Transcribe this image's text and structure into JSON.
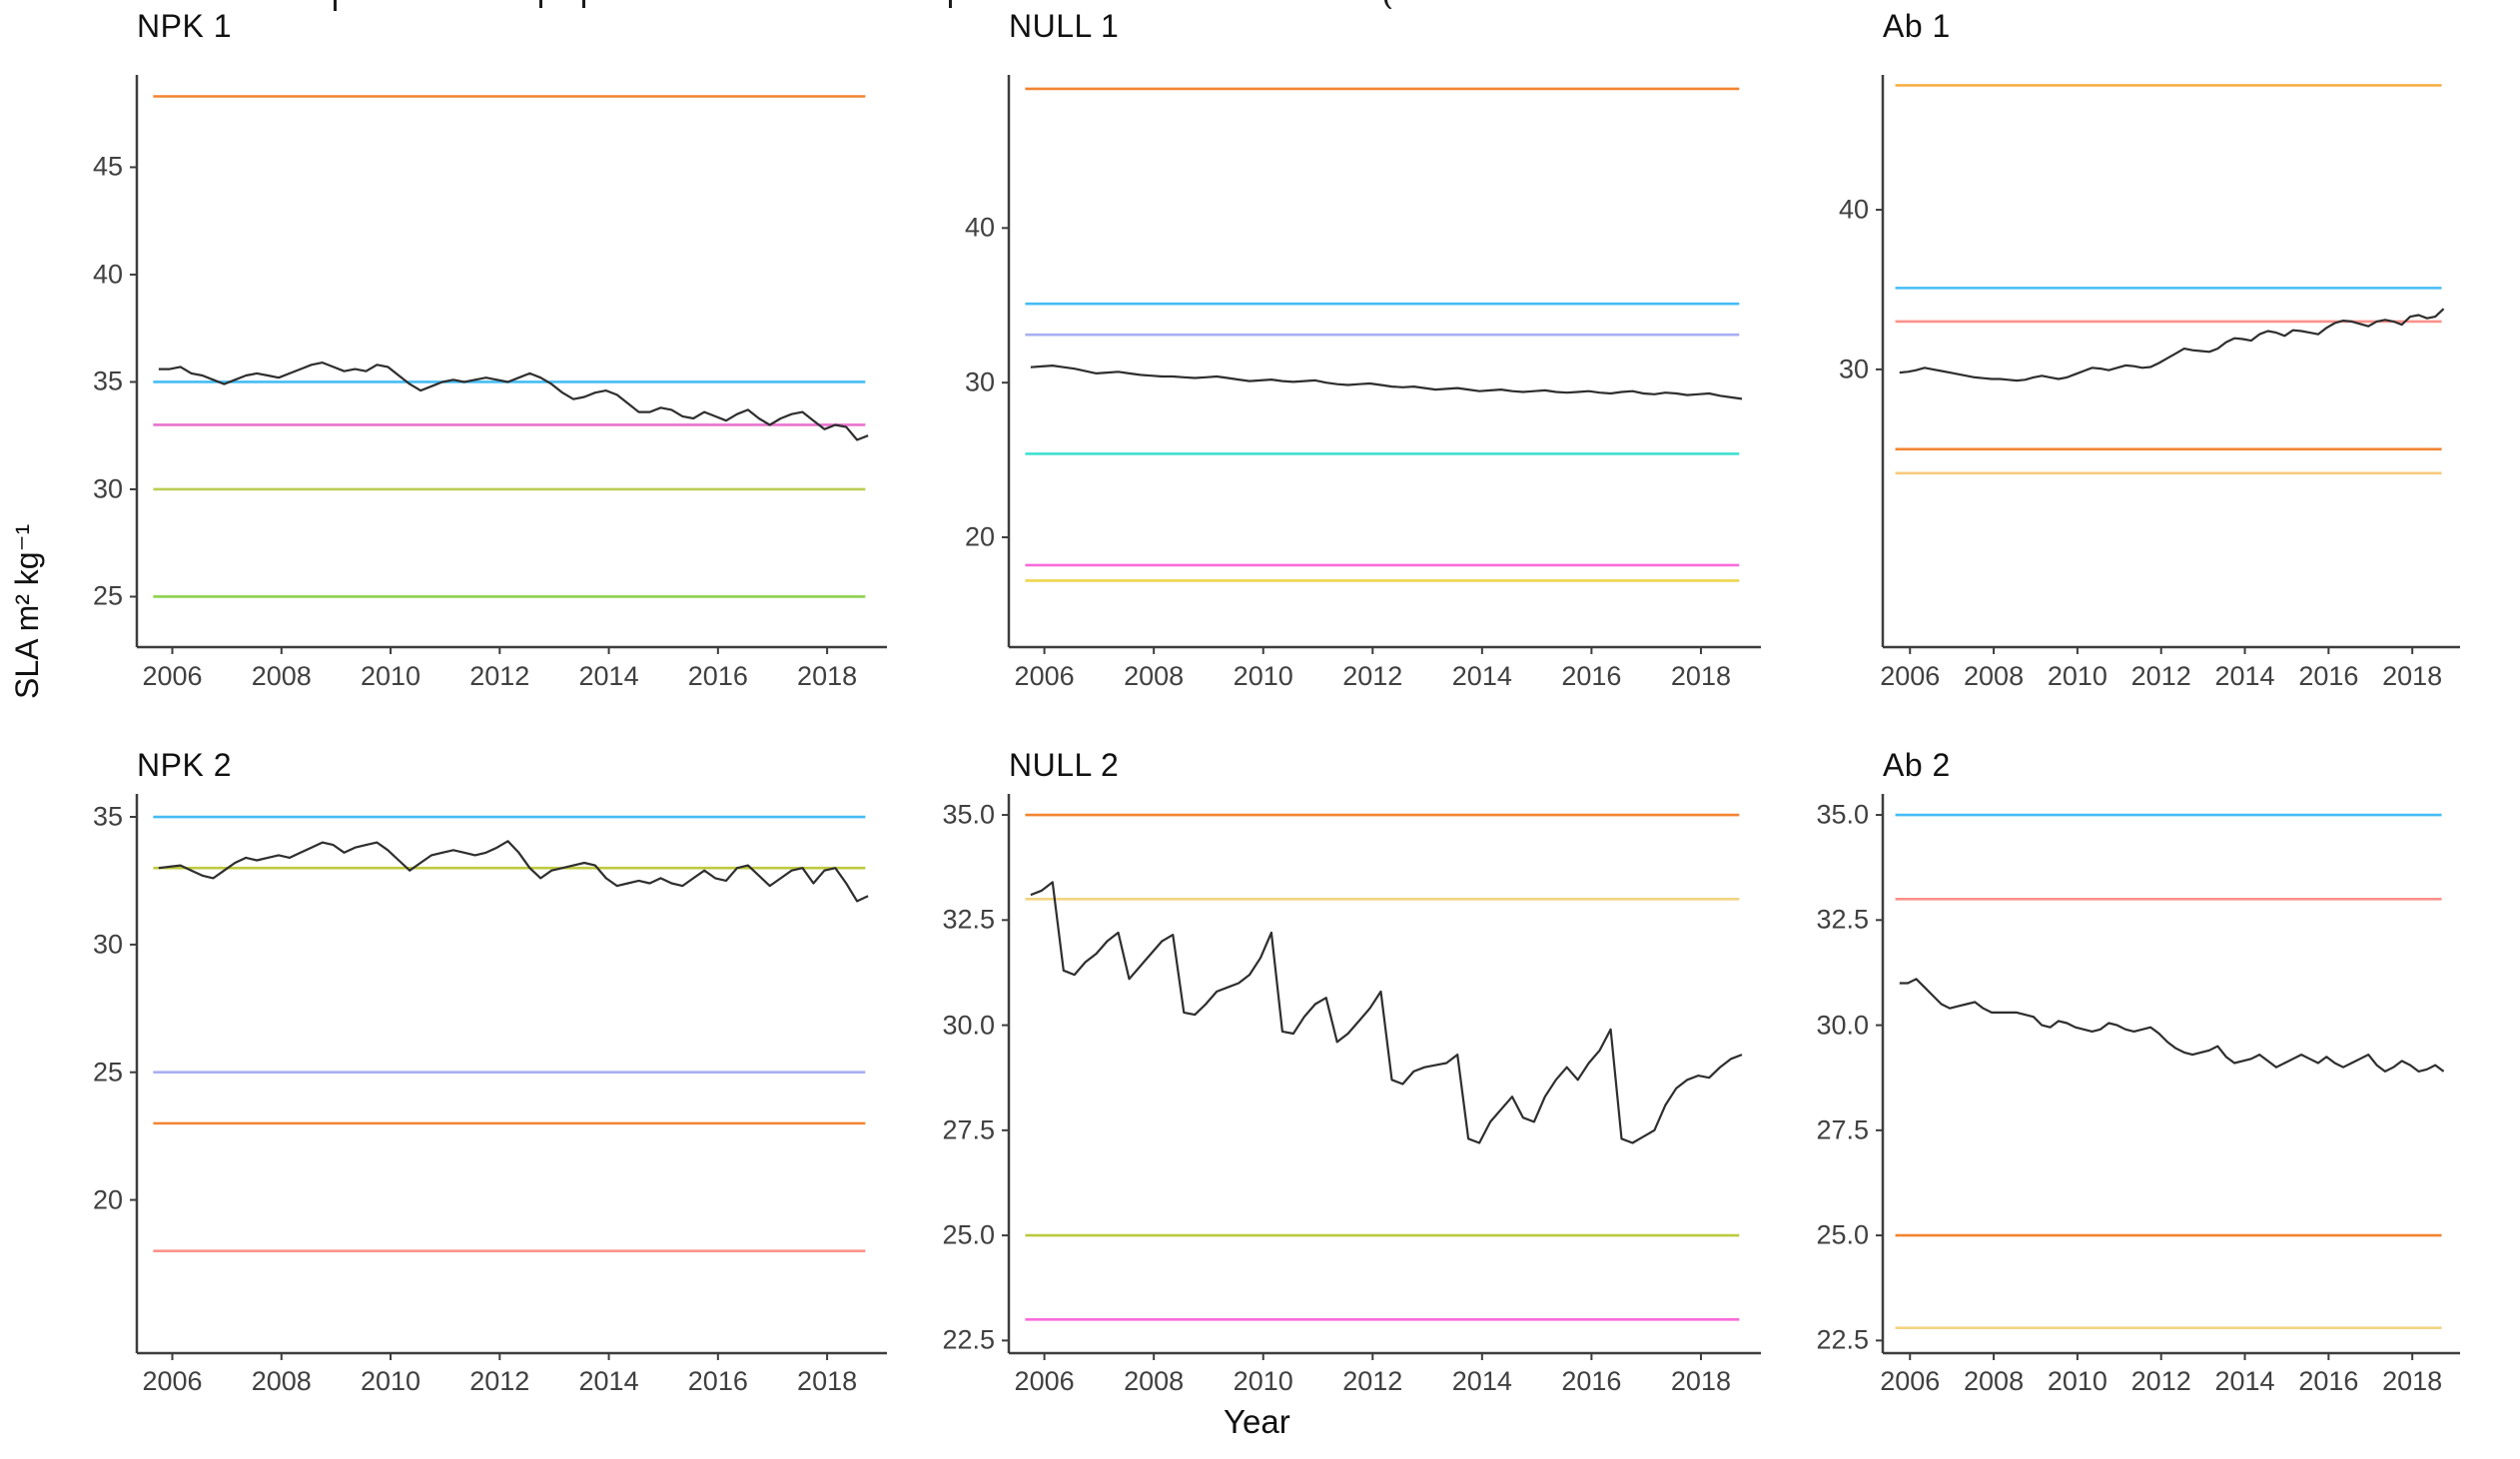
{
  "figure": {
    "y_axis_label": "SLA m² kg⁻¹",
    "x_axis_label": "Year",
    "background": "#ffffff",
    "axis_color": "#3d3d3d",
    "tick_label_color": "#404040",
    "series_color": "#2e2e2e",
    "cropped_top_title": true
  },
  "palette": {
    "orange": "#F28431",
    "skyblue": "#45BCF5",
    "magenta": "#E873CE",
    "pink": "#FA6BDC",
    "yellowgreen": "#BCCE53",
    "green": "#8ED04C",
    "periwinkle": "#A8AEF2",
    "cyan": "#3FE0D0",
    "yellow": "#EDD64F",
    "wheat": "#F2D381",
    "amber": "#F6B044",
    "lightamber": "#F9C97C",
    "olive": "#BEC93E",
    "salmon": "#FB918B"
  },
  "chart_data": [
    {
      "type": "line",
      "title": "NPK 1",
      "row": 1,
      "col": 1,
      "ylim": [
        22.65,
        49.3
      ],
      "yticks": [
        25,
        30,
        35,
        40,
        45
      ],
      "ytick_labels": [
        "25",
        "30",
        "35",
        "40",
        "45"
      ],
      "xlim": [
        2005.35,
        2018.95
      ],
      "xticks": [
        2006,
        2008,
        2010,
        2012,
        2014,
        2016,
        2018
      ],
      "ref_lines": [
        {
          "value": 48.3,
          "color": "orange"
        },
        {
          "value": 35.0,
          "color": "skyblue"
        },
        {
          "value": 33.0,
          "color": "magenta"
        },
        {
          "value": 30.0,
          "color": "yellowgreen"
        },
        {
          "value": 25.0,
          "color": "green"
        }
      ],
      "series": {
        "x_start": 2005.75,
        "x_step": 0.2,
        "values": [
          35.6,
          35.6,
          35.7,
          35.4,
          35.3,
          35.1,
          34.9,
          35.1,
          35.3,
          35.4,
          35.3,
          35.2,
          35.4,
          35.6,
          35.8,
          35.9,
          35.7,
          35.5,
          35.6,
          35.5,
          35.8,
          35.7,
          35.3,
          34.9,
          34.6,
          34.8,
          35.0,
          35.1,
          35.0,
          35.1,
          35.2,
          35.1,
          35.0,
          35.2,
          35.4,
          35.2,
          34.9,
          34.5,
          34.2,
          34.3,
          34.5,
          34.6,
          34.4,
          34.0,
          33.6,
          33.6,
          33.8,
          33.7,
          33.4,
          33.3,
          33.6,
          33.4,
          33.2,
          33.5,
          33.7,
          33.3,
          33.0,
          33.3,
          33.5,
          33.6,
          33.2,
          32.8,
          33.0,
          32.9,
          32.3,
          32.5
        ]
      }
    },
    {
      "type": "line",
      "title": "NULL 1",
      "row": 1,
      "col": 2,
      "ylim": [
        12.9,
        49.9
      ],
      "yticks": [
        20,
        30,
        40
      ],
      "ytick_labels": [
        "20",
        "30",
        "40"
      ],
      "xlim": [
        2005.35,
        2018.95
      ],
      "xticks": [
        2006,
        2008,
        2010,
        2012,
        2014,
        2016,
        2018
      ],
      "ref_lines": [
        {
          "value": 49.0,
          "color": "orange"
        },
        {
          "value": 35.1,
          "color": "skyblue"
        },
        {
          "value": 33.1,
          "color": "periwinkle"
        },
        {
          "value": 25.4,
          "color": "cyan"
        },
        {
          "value": 18.2,
          "color": "pink"
        },
        {
          "value": 17.2,
          "color": "yellow"
        }
      ],
      "series": {
        "x_start": 2005.75,
        "x_step": 0.2,
        "values": [
          31.0,
          31.05,
          31.1,
          31.0,
          30.9,
          30.75,
          30.6,
          30.65,
          30.7,
          30.6,
          30.5,
          30.45,
          30.4,
          30.4,
          30.35,
          30.3,
          30.35,
          30.4,
          30.3,
          30.2,
          30.1,
          30.15,
          30.2,
          30.1,
          30.05,
          30.1,
          30.15,
          30.0,
          29.9,
          29.85,
          29.9,
          29.95,
          29.85,
          29.75,
          29.7,
          29.75,
          29.65,
          29.55,
          29.6,
          29.65,
          29.55,
          29.45,
          29.5,
          29.55,
          29.45,
          29.4,
          29.45,
          29.5,
          29.4,
          29.35,
          29.4,
          29.45,
          29.35,
          29.3,
          29.4,
          29.45,
          29.3,
          29.25,
          29.35,
          29.3,
          29.2,
          29.25,
          29.3,
          29.15,
          29.05,
          28.95
        ]
      }
    },
    {
      "type": "line",
      "title": "Ab 1",
      "row": 1,
      "col": 3,
      "ylim": [
        12.6,
        48.45
      ],
      "yticks": [
        30,
        40
      ],
      "ytick_labels": [
        "30",
        "40"
      ],
      "xlim": [
        2005.35,
        2018.95
      ],
      "xticks": [
        2006,
        2008,
        2010,
        2012,
        2014,
        2016,
        2018
      ],
      "ref_lines": [
        {
          "value": 47.8,
          "color": "amber"
        },
        {
          "value": 35.1,
          "color": "skyblue"
        },
        {
          "value": 33.0,
          "color": "salmon"
        },
        {
          "value": 25.0,
          "color": "orange"
        },
        {
          "value": 23.5,
          "color": "lightamber"
        }
      ],
      "series": {
        "x_start": 2005.75,
        "x_step": 0.2,
        "values": [
          29.8,
          29.85,
          29.95,
          30.1,
          30.0,
          29.9,
          29.8,
          29.7,
          29.6,
          29.5,
          29.45,
          29.4,
          29.4,
          29.35,
          29.3,
          29.35,
          29.5,
          29.6,
          29.5,
          29.4,
          29.5,
          29.7,
          29.9,
          30.1,
          30.05,
          29.95,
          30.1,
          30.25,
          30.2,
          30.1,
          30.15,
          30.4,
          30.7,
          31.0,
          31.3,
          31.2,
          31.15,
          31.1,
          31.3,
          31.7,
          31.95,
          31.9,
          31.8,
          32.2,
          32.4,
          32.3,
          32.1,
          32.45,
          32.4,
          32.3,
          32.2,
          32.6,
          32.9,
          33.05,
          33.0,
          32.85,
          32.7,
          33.0,
          33.1,
          33.0,
          32.8,
          33.3,
          33.4,
          33.2,
          33.3,
          33.8
        ]
      }
    },
    {
      "type": "line",
      "title": "NPK 2",
      "row": 2,
      "col": 1,
      "ylim": [
        14.0,
        35.9
      ],
      "yticks": [
        20,
        25,
        30,
        35
      ],
      "ytick_labels": [
        "20",
        "25",
        "30",
        "35"
      ],
      "xlim": [
        2005.35,
        2018.95
      ],
      "xticks": [
        2006,
        2008,
        2010,
        2012,
        2014,
        2016,
        2018
      ],
      "ref_lines": [
        {
          "value": 35.0,
          "color": "skyblue"
        },
        {
          "value": 33.0,
          "color": "olive"
        },
        {
          "value": 25.0,
          "color": "periwinkle"
        },
        {
          "value": 23.0,
          "color": "orange"
        },
        {
          "value": 18.0,
          "color": "salmon"
        }
      ],
      "series": {
        "x_start": 2005.75,
        "x_step": 0.2,
        "values": [
          33.0,
          33.05,
          33.1,
          32.9,
          32.7,
          32.6,
          32.9,
          33.2,
          33.4,
          33.3,
          33.4,
          33.5,
          33.4,
          33.6,
          33.8,
          34.0,
          33.9,
          33.6,
          33.8,
          33.9,
          34.0,
          33.7,
          33.3,
          32.9,
          33.2,
          33.5,
          33.6,
          33.7,
          33.6,
          33.5,
          33.6,
          33.8,
          34.05,
          33.6,
          33.0,
          32.6,
          32.9,
          33.0,
          33.1,
          33.2,
          33.1,
          32.6,
          32.3,
          32.4,
          32.5,
          32.4,
          32.6,
          32.4,
          32.3,
          32.6,
          32.9,
          32.6,
          32.5,
          33.0,
          33.1,
          32.7,
          32.3,
          32.6,
          32.9,
          33.0,
          32.4,
          32.9,
          33.0,
          32.4,
          31.7,
          31.9
        ]
      }
    },
    {
      "type": "line",
      "title": "NULL 2",
      "row": 2,
      "col": 2,
      "ylim": [
        22.2,
        35.5
      ],
      "yticks": [
        22.5,
        25.0,
        27.5,
        30.0,
        32.5,
        35.0
      ],
      "ytick_labels": [
        "22.5",
        "25.0",
        "27.5",
        "30.0",
        "32.5",
        "35.0"
      ],
      "xlim": [
        2005.35,
        2018.95
      ],
      "xticks": [
        2006,
        2008,
        2010,
        2012,
        2014,
        2016,
        2018
      ],
      "ref_lines": [
        {
          "value": 35.0,
          "color": "orange"
        },
        {
          "value": 33.0,
          "color": "wheat"
        },
        {
          "value": 25.0,
          "color": "olive"
        },
        {
          "value": 23.0,
          "color": "pink"
        }
      ],
      "series": {
        "x_start": 2005.75,
        "x_step": 0.2,
        "values": [
          33.1,
          33.2,
          33.4,
          31.3,
          31.2,
          31.5,
          31.7,
          32.0,
          32.2,
          31.1,
          31.4,
          31.7,
          32.0,
          32.15,
          30.3,
          30.25,
          30.5,
          30.8,
          30.9,
          31.0,
          31.2,
          31.6,
          32.2,
          29.85,
          29.8,
          30.2,
          30.5,
          30.65,
          29.6,
          29.8,
          30.1,
          30.4,
          30.8,
          28.7,
          28.6,
          28.9,
          29.0,
          29.05,
          29.1,
          29.3,
          27.3,
          27.2,
          27.7,
          28.0,
          28.3,
          27.8,
          27.7,
          28.3,
          28.7,
          29.0,
          28.7,
          29.1,
          29.4,
          29.9,
          27.3,
          27.2,
          27.35,
          27.5,
          28.1,
          28.5,
          28.7,
          28.8,
          28.75,
          29.0,
          29.2,
          29.3
        ]
      }
    },
    {
      "type": "line",
      "title": "Ab 2",
      "row": 2,
      "col": 3,
      "ylim": [
        22.2,
        35.5
      ],
      "yticks": [
        22.5,
        25.0,
        27.5,
        30.0,
        32.5,
        35.0
      ],
      "ytick_labels": [
        "22.5",
        "25.0",
        "27.5",
        "30.0",
        "32.5",
        "35.0"
      ],
      "xlim": [
        2005.35,
        2018.95
      ],
      "xticks": [
        2006,
        2008,
        2010,
        2012,
        2014,
        2016,
        2018
      ],
      "ref_lines": [
        {
          "value": 35.0,
          "color": "skyblue"
        },
        {
          "value": 33.0,
          "color": "salmon"
        },
        {
          "value": 25.0,
          "color": "orange"
        },
        {
          "value": 22.8,
          "color": "wheat"
        }
      ],
      "series": {
        "x_start": 2005.75,
        "x_step": 0.2,
        "values": [
          31.0,
          31.0,
          31.1,
          30.9,
          30.7,
          30.5,
          30.4,
          30.45,
          30.5,
          30.55,
          30.4,
          30.3,
          30.3,
          30.3,
          30.3,
          30.25,
          30.2,
          30.0,
          29.95,
          30.1,
          30.05,
          29.95,
          29.9,
          29.85,
          29.9,
          30.05,
          30.0,
          29.9,
          29.85,
          29.9,
          29.95,
          29.8,
          29.6,
          29.45,
          29.35,
          29.3,
          29.35,
          29.4,
          29.5,
          29.25,
          29.1,
          29.15,
          29.2,
          29.3,
          29.15,
          29.0,
          29.1,
          29.2,
          29.3,
          29.2,
          29.1,
          29.25,
          29.1,
          29.0,
          29.1,
          29.2,
          29.3,
          29.05,
          28.9,
          29.0,
          29.15,
          29.05,
          28.9,
          28.95,
          29.05,
          28.9
        ]
      }
    }
  ]
}
